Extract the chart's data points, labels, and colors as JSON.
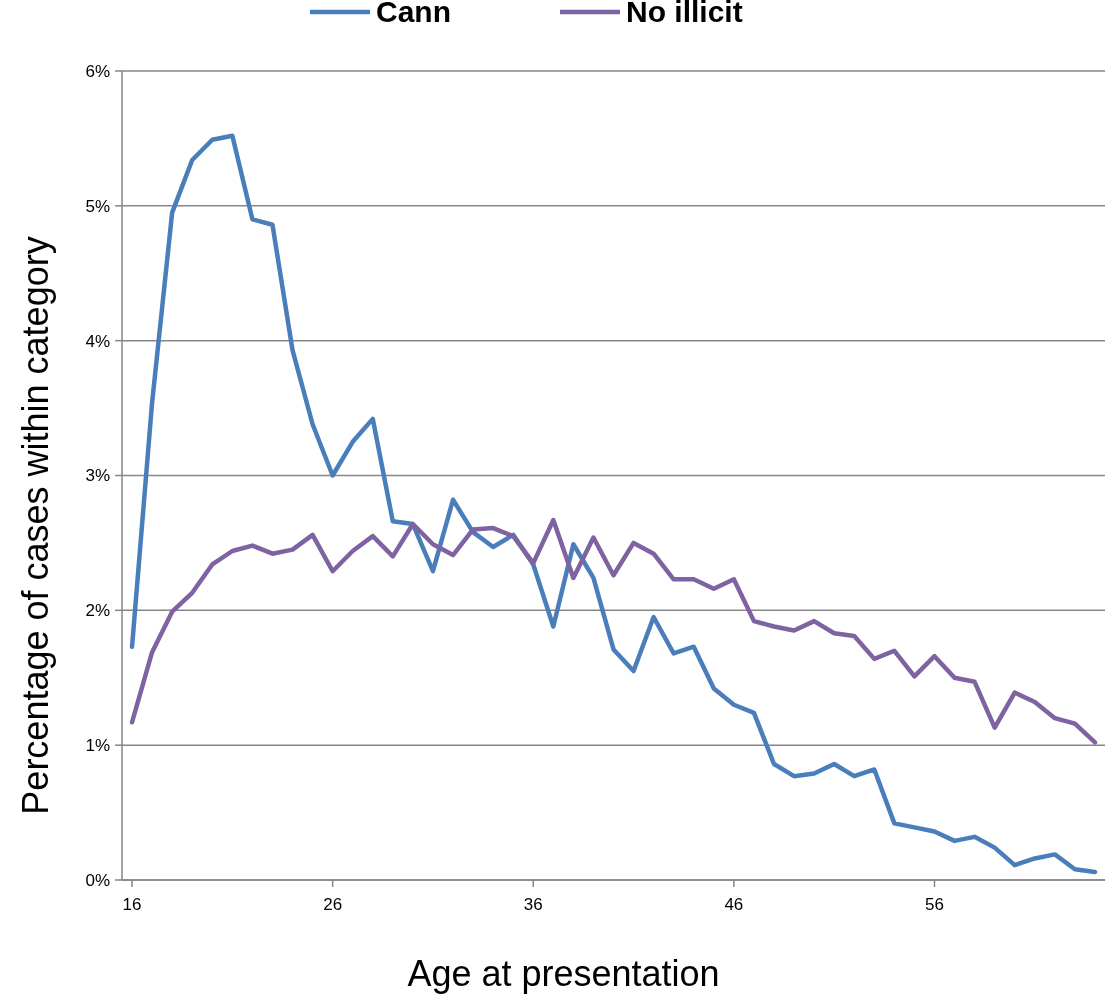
{
  "chart_data": {
    "type": "line",
    "xlabel": "Age at presentation",
    "ylabel": "Percentage of cases within category",
    "x": [
      16,
      17,
      18,
      19,
      20,
      21,
      22,
      23,
      24,
      25,
      26,
      27,
      28,
      29,
      30,
      31,
      32,
      33,
      34,
      35,
      36,
      37,
      38,
      39,
      40,
      41,
      42,
      43,
      44,
      45,
      46,
      47,
      48,
      49,
      50,
      51,
      52,
      53,
      54,
      55,
      56,
      57,
      58,
      59,
      60,
      61,
      62,
      63,
      64
    ],
    "series": [
      {
        "name": "Cann",
        "color": "#4a7ebb",
        "values": [
          1.73,
          3.54,
          4.95,
          5.34,
          5.49,
          5.52,
          4.9,
          4.86,
          3.93,
          3.38,
          3.0,
          3.25,
          3.42,
          2.66,
          2.64,
          2.29,
          2.82,
          2.58,
          2.47,
          2.56,
          2.34,
          1.88,
          2.49,
          2.24,
          1.71,
          1.55,
          1.95,
          1.68,
          1.73,
          1.42,
          1.3,
          1.24,
          0.86,
          0.77,
          0.79,
          0.86,
          0.77,
          0.82,
          0.42,
          0.39,
          0.36,
          0.29,
          0.32,
          0.24,
          0.11,
          0.16,
          0.19,
          0.08,
          0.06
        ]
      },
      {
        "name": "No illicit",
        "color": "#7f62a1",
        "values": [
          1.17,
          1.69,
          1.99,
          2.13,
          2.34,
          2.44,
          2.48,
          2.42,
          2.45,
          2.56,
          2.29,
          2.44,
          2.55,
          2.4,
          2.64,
          2.49,
          2.41,
          2.6,
          2.61,
          2.55,
          2.35,
          2.67,
          2.24,
          2.54,
          2.26,
          2.5,
          2.42,
          2.23,
          2.23,
          2.16,
          2.23,
          1.92,
          1.88,
          1.85,
          1.92,
          1.83,
          1.81,
          1.64,
          1.7,
          1.51,
          1.66,
          1.5,
          1.47,
          1.13,
          1.39,
          1.32,
          1.2,
          1.16,
          1.02
        ]
      }
    ],
    "xlim": [
      15.5,
      64.5
    ],
    "xticks": [
      16,
      26,
      36,
      46,
      56
    ],
    "ylim": [
      0,
      6
    ],
    "yticks": [
      {
        "value": 0,
        "label": "0%"
      },
      {
        "value": 1,
        "label": "1%"
      },
      {
        "value": 2,
        "label": "2%"
      },
      {
        "value": 3,
        "label": "3%"
      },
      {
        "value": 4,
        "label": "4%"
      },
      {
        "value": 5,
        "label": "5%"
      },
      {
        "value": 6,
        "label": "6%"
      }
    ],
    "grid": "y",
    "legend": "top",
    "marker": "none",
    "line_style": "solid"
  }
}
